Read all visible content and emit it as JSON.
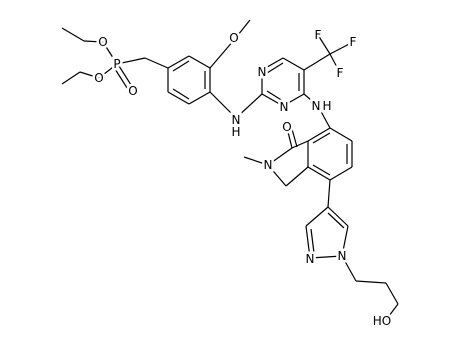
{
  "atoms": [
    "O",
    "O",
    "P",
    "O",
    "O",
    "N",
    "N",
    "F",
    "F",
    "F",
    "N",
    "H",
    "N",
    "H",
    "O",
    "N",
    "N",
    "N",
    "HO"
  ]
}
